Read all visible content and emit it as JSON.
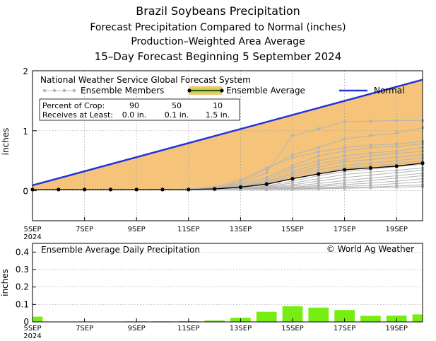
{
  "titles": {
    "main": "Brazil Soybeans Precipitation",
    "line2": "Forecast Precipitation Compared to Normal (inches)",
    "line3": "Production–Weighted Area Average",
    "line4": "15–Day Forecast Beginning 5 September 2024"
  },
  "colors": {
    "normal": "#2233dd",
    "fill": "#f5c47a",
    "ensemble_avg": "#000000",
    "members": "#b4b4b4",
    "bars": "#77ee11",
    "legend_avg_glow": "#88ee22"
  },
  "chart_data": [
    {
      "type": "line",
      "title": "National Weather Service Global Forecast System",
      "ylabel": "inches",
      "ylim": [
        -0.5,
        2.0
      ],
      "xlim": [
        5,
        20
      ],
      "yticks": [
        0,
        1,
        2
      ],
      "xticks": [
        {
          "x": 5,
          "label": "5SEP",
          "sub": "2024"
        },
        {
          "x": 7,
          "label": "7SEP"
        },
        {
          "x": 9,
          "label": "9SEP"
        },
        {
          "x": 11,
          "label": "11SEP"
        },
        {
          "x": 13,
          "label": "13SEP"
        },
        {
          "x": 15,
          "label": "15SEP"
        },
        {
          "x": 17,
          "label": "17SEP"
        },
        {
          "x": 19,
          "label": "19SEP"
        }
      ],
      "legend": {
        "header": "National Weather Service Global Forecast System",
        "members_label": "Ensemble Members",
        "average_label": "Ensemble Average",
        "normal_label": "Normal"
      },
      "crop_table": {
        "row1_label": "Percent of Crop:",
        "row1_values": [
          "90",
          "50",
          "10"
        ],
        "row2_label": "Receives at Least:",
        "row2_values": [
          "0.0 in.",
          "0.1 in.",
          "1.5 in."
        ]
      },
      "series": [
        {
          "name": "Normal",
          "x": [
            5,
            20
          ],
          "values": [
            0.09,
            1.85
          ]
        },
        {
          "name": "Ensemble Average",
          "x": [
            5,
            6,
            7,
            8,
            9,
            10,
            11,
            12,
            13,
            14,
            15,
            16,
            17,
            18,
            19,
            20
          ],
          "values": [
            0.02,
            0.02,
            0.02,
            0.02,
            0.02,
            0.02,
            0.02,
            0.03,
            0.06,
            0.11,
            0.2,
            0.28,
            0.35,
            0.38,
            0.41,
            0.46
          ]
        }
      ],
      "members": [
        [
          0.02,
          0.02,
          0.02,
          0.02,
          0.02,
          0.02,
          0.02,
          0.05,
          0.12,
          0.3,
          0.92,
          1.03,
          1.15,
          1.16,
          1.17,
          1.17
        ],
        [
          0.02,
          0.02,
          0.02,
          0.02,
          0.02,
          0.02,
          0.02,
          0.04,
          0.15,
          0.36,
          0.6,
          0.72,
          0.86,
          0.92,
          0.96,
          1.05
        ],
        [
          0.02,
          0.02,
          0.02,
          0.02,
          0.02,
          0.02,
          0.03,
          0.06,
          0.18,
          0.38,
          0.55,
          0.65,
          0.72,
          0.76,
          0.78,
          0.82
        ],
        [
          0.02,
          0.02,
          0.02,
          0.02,
          0.02,
          0.02,
          0.02,
          0.05,
          0.1,
          0.22,
          0.42,
          0.58,
          0.66,
          0.72,
          0.74,
          0.78
        ],
        [
          0.02,
          0.02,
          0.02,
          0.02,
          0.02,
          0.02,
          0.02,
          0.04,
          0.08,
          0.18,
          0.38,
          0.5,
          0.58,
          0.63,
          0.66,
          0.72
        ],
        [
          0.02,
          0.02,
          0.02,
          0.02,
          0.02,
          0.02,
          0.02,
          0.03,
          0.07,
          0.15,
          0.32,
          0.45,
          0.52,
          0.58,
          0.62,
          0.66
        ],
        [
          0.02,
          0.02,
          0.02,
          0.02,
          0.02,
          0.02,
          0.02,
          0.03,
          0.06,
          0.14,
          0.28,
          0.4,
          0.48,
          0.52,
          0.56,
          0.6
        ],
        [
          0.02,
          0.02,
          0.02,
          0.02,
          0.02,
          0.02,
          0.02,
          0.03,
          0.05,
          0.12,
          0.24,
          0.35,
          0.42,
          0.46,
          0.5,
          0.55
        ],
        [
          0.02,
          0.02,
          0.02,
          0.02,
          0.02,
          0.02,
          0.02,
          0.03,
          0.05,
          0.1,
          0.2,
          0.3,
          0.38,
          0.42,
          0.45,
          0.5
        ],
        [
          0.02,
          0.02,
          0.02,
          0.02,
          0.02,
          0.02,
          0.02,
          0.02,
          0.04,
          0.08,
          0.16,
          0.25,
          0.32,
          0.36,
          0.4,
          0.44
        ],
        [
          0.02,
          0.02,
          0.02,
          0.02,
          0.02,
          0.02,
          0.02,
          0.02,
          0.04,
          0.07,
          0.13,
          0.2,
          0.27,
          0.31,
          0.34,
          0.38
        ],
        [
          0.02,
          0.02,
          0.02,
          0.02,
          0.02,
          0.02,
          0.02,
          0.02,
          0.03,
          0.06,
          0.1,
          0.16,
          0.22,
          0.26,
          0.3,
          0.34
        ],
        [
          0.02,
          0.02,
          0.02,
          0.02,
          0.02,
          0.02,
          0.02,
          0.02,
          0.03,
          0.05,
          0.08,
          0.12,
          0.17,
          0.21,
          0.25,
          0.29
        ],
        [
          0.02,
          0.02,
          0.02,
          0.02,
          0.02,
          0.02,
          0.02,
          0.02,
          0.03,
          0.04,
          0.06,
          0.09,
          0.13,
          0.17,
          0.21,
          0.25
        ],
        [
          0.02,
          0.02,
          0.02,
          0.02,
          0.02,
          0.02,
          0.02,
          0.02,
          0.02,
          0.03,
          0.05,
          0.07,
          0.1,
          0.13,
          0.16,
          0.2
        ],
        [
          0.02,
          0.02,
          0.02,
          0.02,
          0.02,
          0.02,
          0.02,
          0.02,
          0.02,
          0.03,
          0.04,
          0.05,
          0.07,
          0.09,
          0.12,
          0.15
        ],
        [
          0.02,
          0.02,
          0.02,
          0.02,
          0.02,
          0.02,
          0.02,
          0.02,
          0.02,
          0.02,
          0.03,
          0.04,
          0.05,
          0.06,
          0.08,
          0.1
        ],
        [
          0.02,
          0.02,
          0.02,
          0.02,
          0.02,
          0.02,
          0.02,
          0.02,
          0.02,
          0.02,
          0.02,
          0.03,
          0.04,
          0.05,
          0.06,
          0.07
        ]
      ]
    },
    {
      "type": "bar",
      "title": "Ensemble Average Daily Precipitation",
      "attribution": "© World Ag Weather",
      "ylabel": "inches",
      "ylim": [
        0,
        0.45
      ],
      "yticks": [
        0,
        0.1,
        0.2,
        0.3,
        0.4
      ],
      "ytick_labels": [
        "0",
        "0.1",
        "0.2",
        "0.3",
        "0.4"
      ],
      "xlim": [
        5,
        20
      ],
      "xticks": [
        {
          "x": 5,
          "label": "5SEP",
          "sub": "2024"
        },
        {
          "x": 7,
          "label": "7SEP"
        },
        {
          "x": 9,
          "label": "9SEP"
        },
        {
          "x": 11,
          "label": "11SEP"
        },
        {
          "x": 13,
          "label": "13SEP"
        },
        {
          "x": 15,
          "label": "15SEP"
        },
        {
          "x": 17,
          "label": "17SEP"
        },
        {
          "x": 19,
          "label": "19SEP"
        }
      ],
      "x": [
        5,
        6,
        7,
        8,
        9,
        10,
        11,
        12,
        13,
        14,
        15,
        16,
        17,
        18,
        19,
        20
      ],
      "values": [
        0.03,
        0.002,
        0.002,
        0.002,
        0.003,
        0.003,
        0.004,
        0.008,
        0.024,
        0.058,
        0.09,
        0.082,
        0.068,
        0.035,
        0.036,
        0.043
      ]
    }
  ]
}
